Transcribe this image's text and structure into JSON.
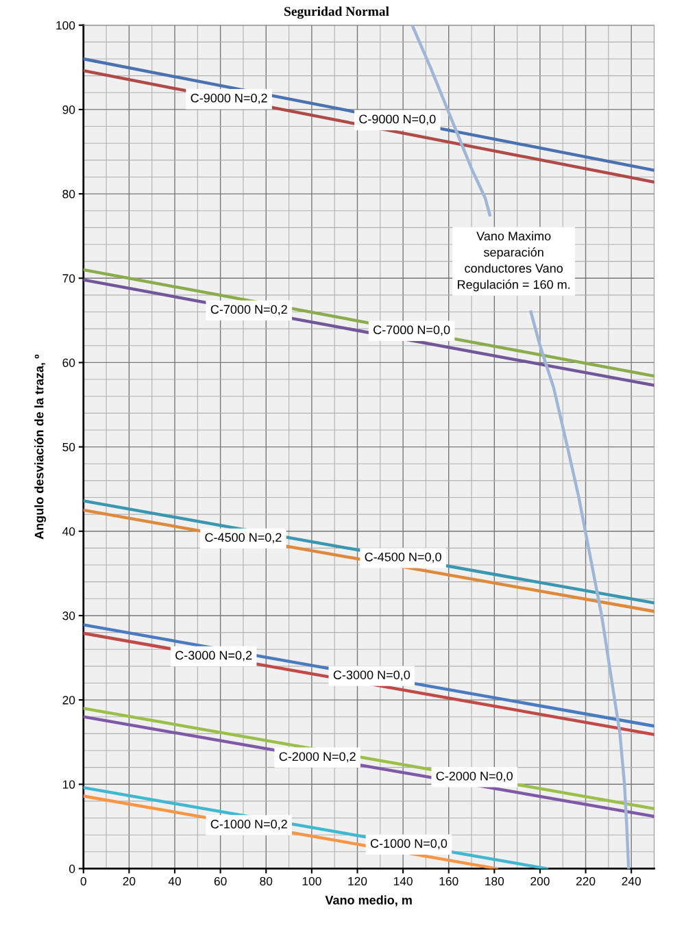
{
  "chart_data": {
    "type": "line",
    "title": "Seguridad Normal",
    "xlabel": "Vano medio, m",
    "ylabel": "Angulo desviación de la traza, º",
    "xlim": [
      0,
      250
    ],
    "xticks": [
      0,
      20,
      40,
      60,
      80,
      100,
      120,
      140,
      160,
      180,
      200,
      220,
      240
    ],
    "ylim": [
      0,
      100
    ],
    "yticks": [
      0,
      10,
      20,
      30,
      40,
      50,
      60,
      70,
      80,
      90,
      100
    ],
    "grid": true,
    "marker": "none",
    "line_style": "solid",
    "series": [
      {
        "name": "C-9000 N=0,0",
        "color": "#4a72b0",
        "x": [
          0,
          250
        ],
        "values": [
          96,
          82.8
        ]
      },
      {
        "name": "C-9000 N=0,2",
        "color": "#b04a48",
        "x": [
          0,
          250
        ],
        "values": [
          94.6,
          81.4
        ]
      },
      {
        "name": "C-7000 N=0,0",
        "color": "#8aac4a",
        "x": [
          0,
          250
        ],
        "values": [
          71,
          58.4
        ]
      },
      {
        "name": "C-7000 N=0,2",
        "color": "#72569a",
        "x": [
          0,
          250
        ],
        "values": [
          69.8,
          57.3
        ]
      },
      {
        "name": "C-4500 N=0,0",
        "color": "#3a97b0",
        "x": [
          0,
          250
        ],
        "values": [
          43.6,
          31.5
        ]
      },
      {
        "name": "C-4500 N=0,2",
        "color": "#de8a3c",
        "x": [
          0,
          250
        ],
        "values": [
          42.5,
          30.5
        ]
      },
      {
        "name": "C-3000 N=0,0",
        "color": "#4a7bc0",
        "x": [
          0,
          250
        ],
        "values": [
          28.9,
          16.9
        ]
      },
      {
        "name": "C-3000 N=0,2",
        "color": "#c04a48",
        "x": [
          0,
          250
        ],
        "values": [
          27.9,
          15.9
        ]
      },
      {
        "name": "C-2000 N=0,0",
        "color": "#9ac04a",
        "x": [
          0,
          250
        ],
        "values": [
          19,
          7.1
        ]
      },
      {
        "name": "C-2000 N=0,2",
        "color": "#7e5aa6",
        "x": [
          0,
          250
        ],
        "values": [
          18,
          6.2
        ]
      },
      {
        "name": "C-1000 N=0,0",
        "color": "#40b8d0",
        "x": [
          0,
          203
        ],
        "values": [
          9.6,
          0
        ]
      },
      {
        "name": "C-1000 N=0,2",
        "color": "#f79646",
        "x": [
          0,
          181
        ],
        "values": [
          8.6,
          0
        ]
      },
      {
        "name": "Vano Maximo\nseparación\nconductores Vano\nRegulación = 160 m.",
        "color": "#a0b6d6",
        "x": [
          144,
          152,
          158,
          164,
          170,
          176,
          178,
          187,
          196,
          200,
          206,
          212,
          217,
          222,
          227,
          231,
          235,
          237,
          238,
          238.8
        ],
        "values": [
          100,
          95,
          91,
          87,
          83,
          79.5,
          77.5,
          null,
          66,
          62,
          57,
          50,
          44,
          37,
          30,
          23,
          16,
          10,
          5,
          0
        ]
      }
    ]
  }
}
